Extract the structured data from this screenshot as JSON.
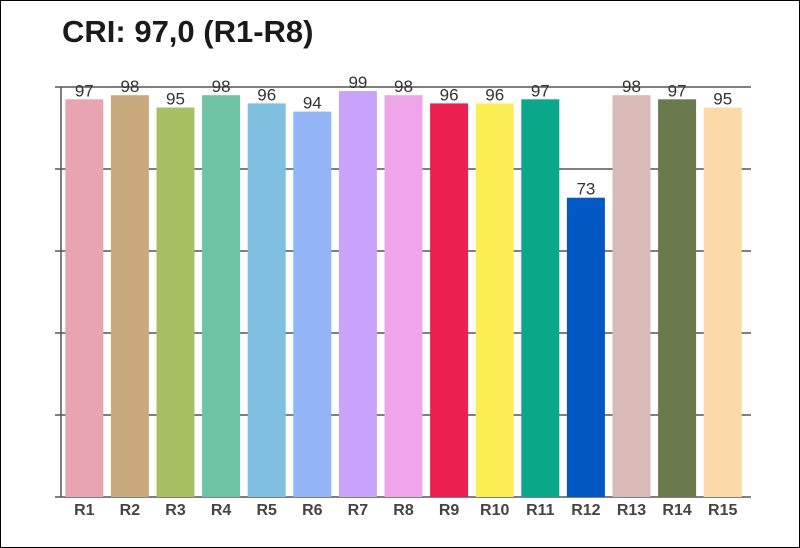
{
  "chart_data": {
    "type": "bar",
    "title": "CRI: 97,0 (R1-R8)",
    "xlabel": "",
    "ylabel": "",
    "ylim": [
      0,
      100
    ],
    "grid": true,
    "categories": [
      "R1",
      "R2",
      "R3",
      "R4",
      "R5",
      "R6",
      "R7",
      "R8",
      "R9",
      "R10",
      "R11",
      "R12",
      "R13",
      "R14",
      "R15"
    ],
    "values": [
      97,
      98,
      95,
      98,
      96,
      94,
      99,
      98,
      96,
      96,
      97,
      73,
      98,
      97,
      95
    ],
    "colors": [
      "#e8a4b0",
      "#c9aa7e",
      "#a9bf64",
      "#6ec3a4",
      "#7fbfe0",
      "#94b4f8",
      "#c9a2f9",
      "#f0a4ea",
      "#e92050",
      "#fcef55",
      "#0aa888",
      "#0358c3",
      "#d9bab6",
      "#6a7a4e",
      "#fcd9a8"
    ]
  }
}
